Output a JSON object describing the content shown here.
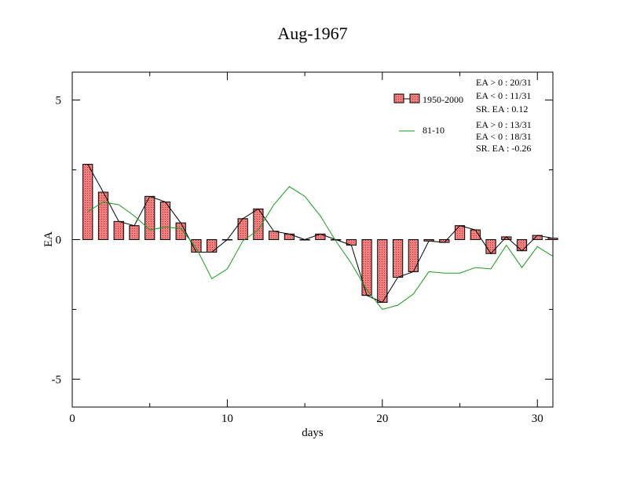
{
  "chart_data": {
    "type": "bar",
    "title": "Aug-1967",
    "xlabel": "days",
    "ylabel": "EA",
    "xlim": [
      0,
      31
    ],
    "ylim": [
      -6,
      6
    ],
    "x_ticks": [
      0,
      10,
      20,
      30
    ],
    "x_tick_labels": [
      "0",
      "10",
      "20",
      "30"
    ],
    "y_ticks": [
      -5,
      0,
      5
    ],
    "y_tick_labels": [
      "-5",
      "0",
      "5"
    ],
    "grid": false,
    "legend_position": "top-right",
    "colors": {
      "bar_fill": "#f08080",
      "bar_edge": "#000000",
      "line_bars": "#000000",
      "line_green": "#1a9a1a"
    },
    "series": [
      {
        "name": "1950-2000",
        "kind": "bar+line",
        "x": [
          1,
          2,
          3,
          4,
          5,
          6,
          7,
          8,
          9,
          10,
          11,
          12,
          13,
          14,
          15,
          16,
          17,
          18,
          19,
          20,
          21,
          22,
          23,
          24,
          25,
          26,
          27,
          28,
          29,
          30,
          31
        ],
        "values": [
          2.7,
          1.7,
          0.65,
          0.5,
          1.55,
          1.35,
          0.6,
          -0.45,
          -0.45,
          0.0,
          0.75,
          1.1,
          0.3,
          0.2,
          0.0,
          0.2,
          0.0,
          -0.2,
          -2.0,
          -2.25,
          -1.35,
          -1.15,
          -0.05,
          -0.1,
          0.5,
          0.35,
          -0.5,
          0.1,
          -0.4,
          0.15,
          0.05
        ]
      },
      {
        "name": "81-10",
        "kind": "line",
        "x": [
          1,
          2,
          3,
          4,
          5,
          6,
          7,
          8,
          9,
          10,
          11,
          12,
          13,
          14,
          15,
          16,
          17,
          18,
          19,
          20,
          21,
          22,
          23,
          24,
          25,
          26,
          27,
          28,
          29,
          30,
          31
        ],
        "values": [
          1.0,
          1.35,
          1.25,
          0.85,
          0.35,
          0.45,
          0.4,
          -0.3,
          -1.4,
          -1.05,
          -0.05,
          0.35,
          1.25,
          1.9,
          1.55,
          0.85,
          -0.05,
          -0.85,
          -1.8,
          -2.5,
          -2.35,
          -1.95,
          -1.15,
          -1.2,
          -1.2,
          -1.0,
          -1.05,
          -0.2,
          -1.0,
          -0.25,
          -0.6
        ]
      }
    ],
    "annotations": [
      {
        "group": "1950-2000",
        "lines": [
          "EA > 0 : 20/31",
          "EA < 0 : 11/31",
          "SR. EA :  0.12"
        ]
      },
      {
        "group": "81-10",
        "lines": [
          "EA > 0 : 13/31",
          "EA < 0 : 18/31",
          "SR. EA : -0.26"
        ]
      }
    ]
  }
}
